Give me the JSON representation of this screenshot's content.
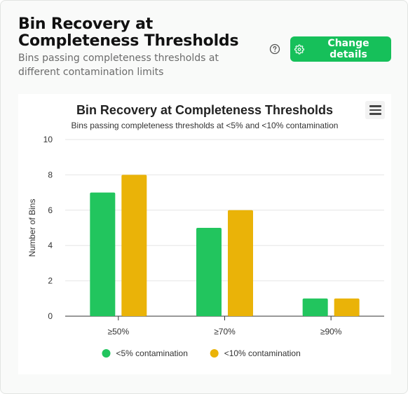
{
  "header": {
    "title": "Bin Recovery at Completeness Thresholds",
    "subtitle": "Bins passing completeness thresholds at different contamination limits",
    "change_details_label": "Change details",
    "help_icon": "question-circle-icon",
    "settings_icon": "gear-icon"
  },
  "chart_data": {
    "type": "bar",
    "title": "Bin Recovery at Completeness Thresholds",
    "subtitle": "Bins passing completeness thresholds at <5% and <10% contamination",
    "categories": [
      "≥50%",
      "≥70%",
      "≥90%"
    ],
    "series": [
      {
        "name": "<5% contamination",
        "values": [
          7,
          5,
          1
        ],
        "color": "#22c55e"
      },
      {
        "name": "<10% contamination",
        "values": [
          8,
          6,
          1
        ],
        "color": "#eab308"
      }
    ],
    "xlabel": "",
    "ylabel": "Number of Bins",
    "ylim": [
      0,
      10
    ],
    "yticks": [
      0,
      2,
      4,
      6,
      8,
      10
    ],
    "grid": true,
    "legend": "bottom"
  },
  "chart_menu_icon": "hamburger-menu-icon"
}
